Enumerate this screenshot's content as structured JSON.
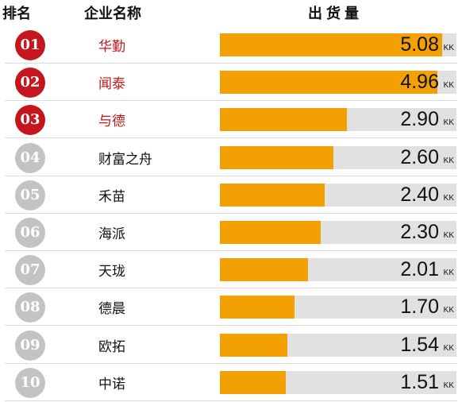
{
  "colors": {
    "top_badge": "#c4161c",
    "other_badge": "#c3c3c3",
    "top_name": "#c4161c",
    "other_name": "#111111",
    "bar_fill": "#f3a005",
    "bar_track": "#e1e1e1"
  },
  "header": {
    "rank": "排名",
    "company": "企业名称",
    "shipment": "出货量"
  },
  "unit": "KK",
  "chart_data": {
    "type": "bar",
    "orientation": "horizontal",
    "title": "",
    "xlabel": "出货量",
    "ylabel": "企业名称",
    "xlim": [
      0,
      5.4
    ],
    "grid": false,
    "legend": "none",
    "categories": [
      "华勤",
      "闻泰",
      "与德",
      "财富之舟",
      "禾苗",
      "海派",
      "天珑",
      "德晨",
      "欧拓",
      "中诺"
    ],
    "ranks": [
      "01",
      "02",
      "03",
      "04",
      "05",
      "06",
      "07",
      "08",
      "09",
      "10"
    ],
    "values": [
      5.08,
      4.96,
      2.9,
      2.6,
      2.4,
      2.3,
      2.01,
      1.7,
      1.54,
      1.51
    ],
    "labels": [
      "5.08",
      "4.96",
      "2.90",
      "2.60",
      "2.40",
      "2.30",
      "2.01",
      "1.70",
      "1.54",
      "1.51"
    ]
  }
}
